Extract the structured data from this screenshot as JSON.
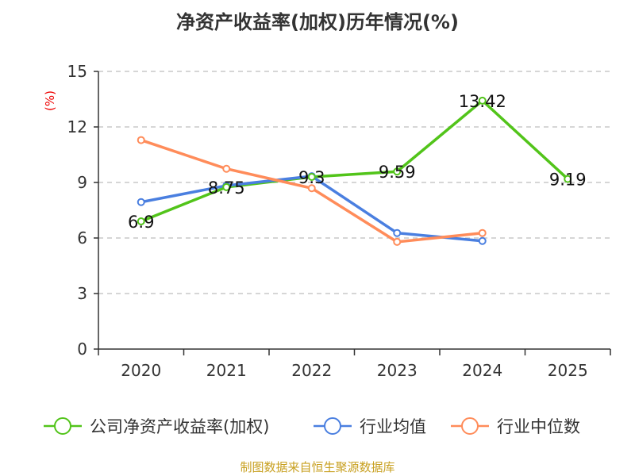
{
  "chart_data": {
    "type": "line",
    "title": "净资产收益率(加权)历年情况(%)",
    "ylabel": "(%)",
    "xlabel": "",
    "categories": [
      "2020",
      "2021",
      "2022",
      "2023",
      "2024",
      "2025"
    ],
    "ylim": [
      0,
      15
    ],
    "yticks": [
      0,
      3,
      6,
      9,
      12,
      15
    ],
    "grid": true,
    "legend_position": "bottom",
    "series": [
      {
        "name": "公司净资产收益率(加权)",
        "color": "#52c41a",
        "values": [
          6.9,
          8.75,
          9.3,
          9.59,
          13.42,
          9.19
        ],
        "labels": [
          "6.9",
          "8.75",
          "9.3",
          "9.59",
          "13.42",
          "9.19"
        ]
      },
      {
        "name": "行业均值",
        "color": "#4a7fe0",
        "values": [
          7.94,
          8.83,
          9.34,
          6.27,
          5.84,
          null
        ]
      },
      {
        "name": "行业中位数",
        "color": "#ff8c5a",
        "values": [
          11.29,
          9.74,
          8.69,
          5.79,
          6.27,
          null
        ]
      }
    ]
  },
  "source": "制图数据来自恒生聚源数据库"
}
